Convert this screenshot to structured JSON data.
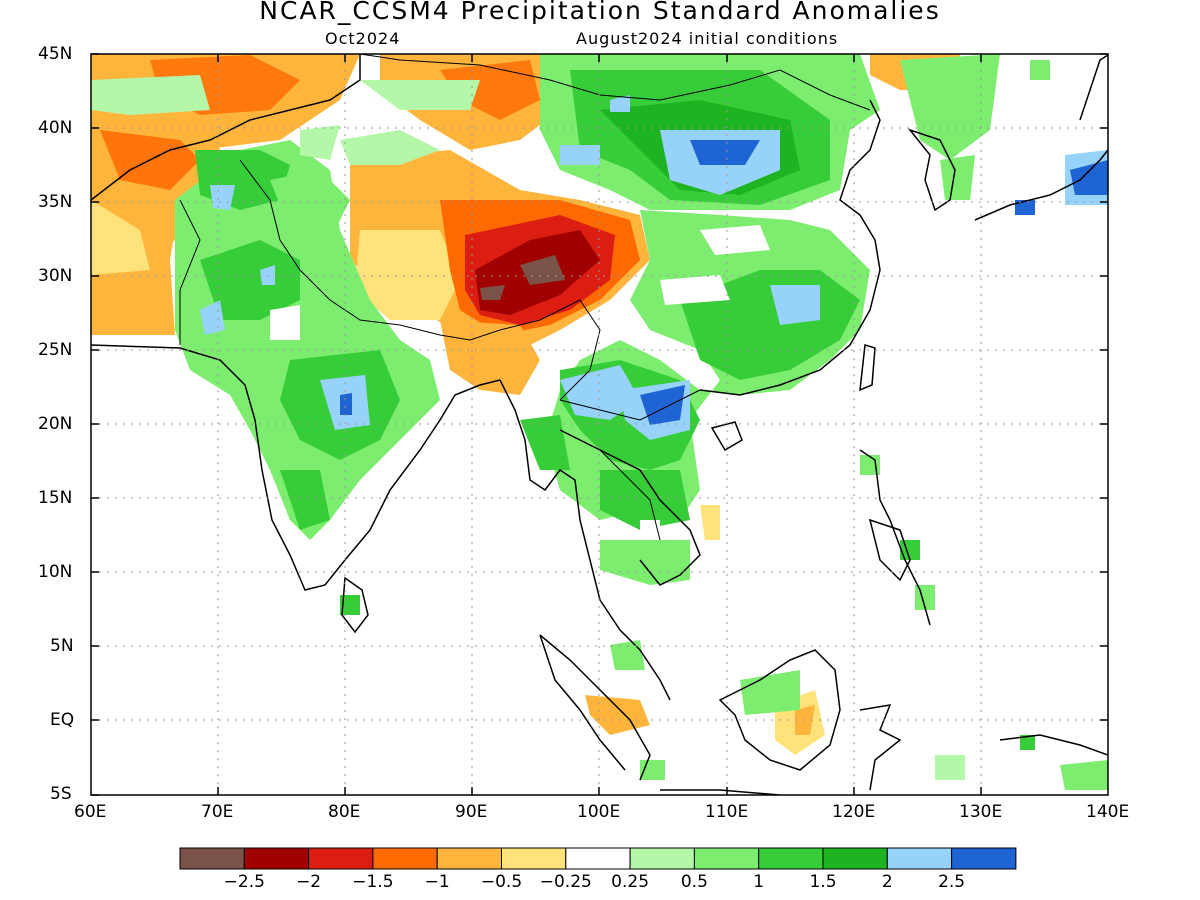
{
  "title": "NCAR_CCSM4 Precipitation Standard Anomalies",
  "valid_month": "Oct2024",
  "initial_conditions": "August2024 initial conditions",
  "lat_labels": [
    "45N",
    "40N",
    "35N",
    "30N",
    "25N",
    "20N",
    "15N",
    "10N",
    "5N",
    "EQ",
    "5S"
  ],
  "lon_labels": [
    "60E",
    "70E",
    "80E",
    "90E",
    "100E",
    "110E",
    "120E",
    "130E",
    "140E"
  ],
  "colorbar": {
    "colors": [
      "#7b5248",
      "#a00000",
      "#dc1e12",
      "#ff6a00",
      "#ffb43c",
      "#ffe27a",
      "#ffffff",
      "#b4f7a8",
      "#7ded6f",
      "#37cd39",
      "#1eb321",
      "#96d2fa",
      "#1e64d2"
    ],
    "labels": [
      "-2.5",
      "-2",
      "-1.5",
      "-1",
      "-0.5",
      "-0.25",
      "0.25",
      "0.5",
      "1",
      "1.5",
      "2",
      "2.5"
    ]
  },
  "map_extent": {
    "lon": [
      60,
      140
    ],
    "lat": [
      -5,
      45
    ]
  }
}
